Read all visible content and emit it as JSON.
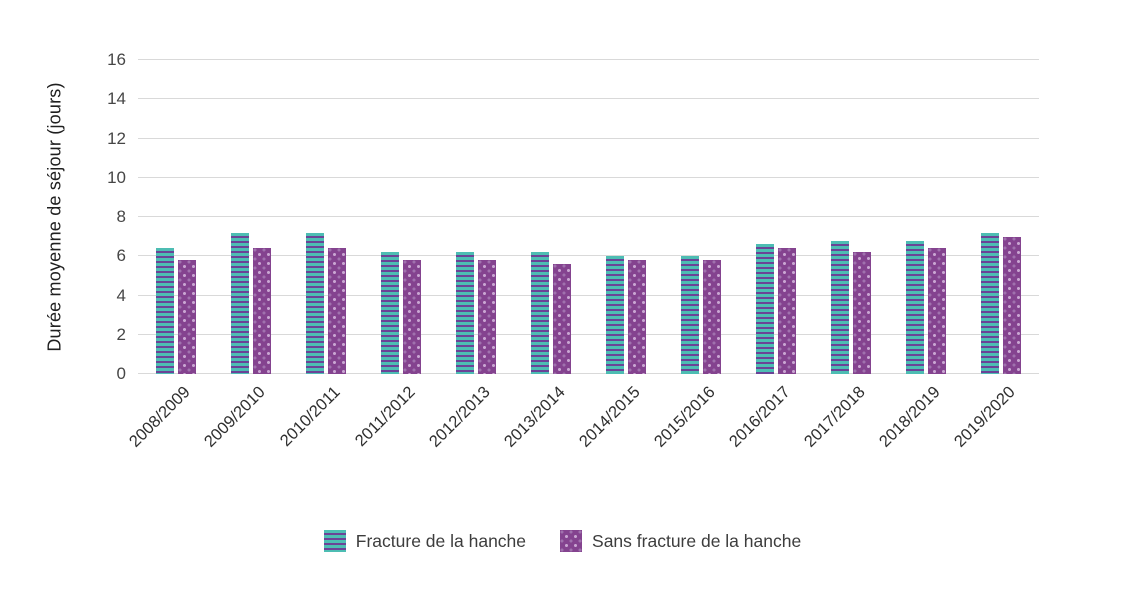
{
  "chart_data": {
    "type": "bar",
    "title": "",
    "xlabel": "",
    "ylabel": "Durée moyenne de séjour (jours)",
    "ylim": [
      0,
      16
    ],
    "yticks": [
      0,
      2,
      4,
      6,
      8,
      10,
      12,
      14,
      16
    ],
    "grid": "horizontal",
    "legend_position": "bottom",
    "categories": [
      "2008/2009",
      "2009/2010",
      "2010/2011",
      "2011/2012",
      "2012/2013",
      "2013/2014",
      "2014/2015",
      "2015/2016",
      "2016/2017",
      "2017/2018",
      "2018/2019",
      "2019/2020"
    ],
    "series": [
      {
        "name": "Fracture de la hanche",
        "pattern": "horizontal-stripes",
        "color_base": "#4DBDB3",
        "color_accent": "#6B4397",
        "values": [
          6.4,
          7.2,
          7.2,
          6.2,
          6.2,
          6.2,
          6.0,
          6.0,
          6.6,
          6.8,
          6.8,
          7.2
        ]
      },
      {
        "name": "Sans fracture de la hanche",
        "pattern": "dots",
        "color_base": "#84438F",
        "color_accent": "#C9A6D2",
        "values": [
          5.8,
          6.4,
          6.4,
          5.8,
          5.8,
          5.6,
          5.8,
          5.8,
          6.4,
          6.2,
          6.4,
          7.0
        ]
      }
    ],
    "colors": {
      "gridline": "#d9d9d9",
      "tick_text": "#464646",
      "label_text": "#2e2e2e"
    }
  }
}
